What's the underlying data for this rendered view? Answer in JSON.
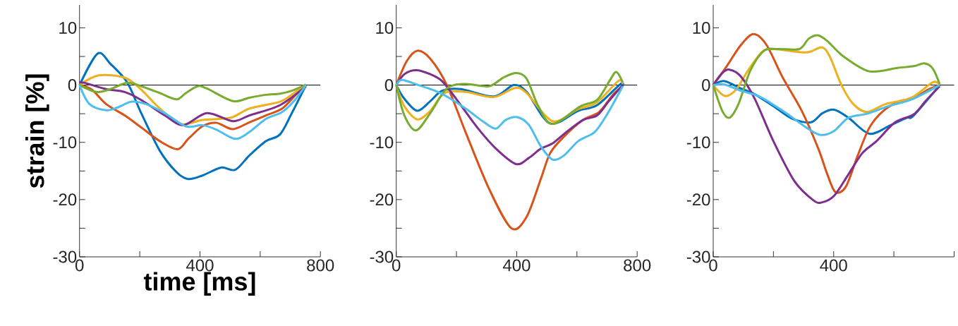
{
  "chart_data": [
    {
      "type": "line",
      "xlabel": "time [ms]",
      "ylabel": "strain [%]",
      "xlim": [
        0,
        800
      ],
      "ylim": [
        -30,
        14
      ],
      "xticks": [
        0,
        {
          "value": 200,
          "label": null
        },
        400,
        {
          "value": 600,
          "label": null
        },
        800
      ],
      "yticks": [
        -30,
        {
          "value": -25,
          "label": null
        },
        -20,
        {
          "value": -15,
          "label": null
        },
        -10,
        {
          "value": -5,
          "label": null
        },
        0,
        {
          "value": 5,
          "label": null
        },
        10
      ],
      "ref_lines": [
        {
          "axis": "y",
          "value": 0,
          "color": "#000000"
        }
      ],
      "series": [
        {
          "color": "#0072bd",
          "x": [
            0,
            60,
            103,
            158,
            205,
            267,
            322,
            361,
            408,
            470,
            517,
            564,
            619,
            666,
            705,
            752
          ],
          "values": [
            0,
            5.5,
            3.7,
            0.5,
            -4.9,
            -11.5,
            -15.2,
            -16.4,
            -15.8,
            -14.4,
            -14.8,
            -12.3,
            -9.8,
            -8.6,
            -4.9,
            0
          ]
        },
        {
          "color": "#d95319",
          "x": [
            0,
            41,
            88,
            150,
            205,
            267,
            326,
            361,
            408,
            455,
            509,
            564,
            619,
            673,
            720,
            752
          ],
          "values": [
            0,
            -0.8,
            -3.3,
            -5.3,
            -7.4,
            -9.8,
            -11.2,
            -9.4,
            -7.2,
            -6.6,
            -7.7,
            -6.5,
            -5.3,
            -4.1,
            -1.6,
            -0.3
          ]
        },
        {
          "color": "#edb120",
          "x": [
            0,
            64,
            150,
            205,
            267,
            337,
            408,
            502,
            564,
            666,
            712,
            752
          ],
          "values": [
            0,
            1.7,
            1.3,
            -0.8,
            -4.1,
            -6.8,
            -6.1,
            -5.7,
            -4.1,
            -2.9,
            -1.4,
            0
          ]
        },
        {
          "color": "#7e2f8e",
          "x": [
            0,
            17,
            88,
            150,
            205,
            283,
            345,
            423,
            509,
            564,
            666,
            752
          ],
          "values": [
            0.4,
            0.4,
            -0.7,
            -1.2,
            -2.6,
            -5.3,
            -7.0,
            -4.9,
            -6.3,
            -5.3,
            -3.5,
            -0.2
          ]
        },
        {
          "color": "#77ac30",
          "x": [
            0,
            56,
            103,
            158,
            205,
            267,
            322,
            353,
            392,
            423,
            509,
            564,
            619,
            666,
            705,
            752
          ],
          "values": [
            0,
            -1.2,
            -0.7,
            0.4,
            -0.2,
            -1.4,
            -2.5,
            -1.4,
            -0.2,
            -0.6,
            -2.8,
            -2.2,
            -1.7,
            -1.5,
            -1.0,
            0.1
          ]
        },
        {
          "color": "#4dbeee",
          "x": [
            0,
            33,
            88,
            127,
            173,
            220,
            283,
            353,
            408,
            455,
            517,
            564,
            619,
            673,
            712,
            752
          ],
          "values": [
            0,
            -3.3,
            -4.4,
            -3.9,
            -2.9,
            -3.3,
            -4.9,
            -7.2,
            -7.0,
            -7.8,
            -9.4,
            -8.2,
            -5.9,
            -4.7,
            -2.8,
            0
          ]
        }
      ]
    },
    {
      "type": "line",
      "xlim": [
        0,
        800
      ],
      "ylim": [
        -30,
        14
      ],
      "xticks": [
        0,
        {
          "value": 200,
          "label": null
        },
        400,
        {
          "value": 600,
          "label": null
        },
        800
      ],
      "yticks": [
        -30,
        {
          "value": -25,
          "label": null
        },
        -20,
        {
          "value": -15,
          "label": null
        },
        -10,
        {
          "value": -5,
          "label": null
        },
        0,
        {
          "value": 5,
          "label": null
        },
        10
      ],
      "ref_lines": [
        {
          "axis": "y",
          "value": 0,
          "color": "#000000"
        }
      ],
      "series": [
        {
          "color": "#0072bd",
          "x": [
            0,
            27,
            70,
            113,
            152,
            214,
            324,
            390,
            433,
            511,
            604,
            667,
            745,
            752
          ],
          "values": [
            0,
            -2.4,
            -4.5,
            -2.8,
            -1.0,
            -0.7,
            -2.0,
            0,
            -1.2,
            -6.7,
            -4.5,
            -3.5,
            0.2,
            -0.2
          ]
        },
        {
          "color": "#d95319",
          "x": [
            0,
            35,
            70,
            113,
            168,
            230,
            308,
            382,
            433,
            480,
            511,
            557,
            620,
            674,
            721,
            752
          ],
          "values": [
            0,
            4.2,
            6.0,
            4.6,
            0,
            -8.2,
            -18.1,
            -25.0,
            -23.0,
            -16.4,
            -11.9,
            -9.0,
            -6.1,
            -4.7,
            -1.6,
            -0.2
          ]
        },
        {
          "color": "#edb120",
          "x": [
            0,
            27,
            70,
            113,
            160,
            230,
            324,
            394,
            433,
            519,
            604,
            667,
            737,
            752
          ],
          "values": [
            0,
            -3.7,
            -6.0,
            -4.5,
            -1.4,
            -1.2,
            -2.1,
            -0.5,
            -1.4,
            -6.3,
            -4.2,
            -3.0,
            0.7,
            0.2
          ]
        },
        {
          "color": "#7e2f8e",
          "x": [
            0,
            27,
            66,
            113,
            152,
            199,
            269,
            331,
            398,
            441,
            480,
            519,
            565,
            620,
            667,
            706,
            752
          ],
          "values": [
            0,
            1.9,
            2.6,
            1.9,
            0.7,
            -2.4,
            -7.4,
            -11.1,
            -13.8,
            -12.7,
            -11.1,
            -10.2,
            -8.2,
            -6.1,
            -5.3,
            -2.8,
            0
          ]
        },
        {
          "color": "#77ac30",
          "x": [
            0,
            27,
            66,
            113,
            168,
            230,
            308,
            355,
            398,
            433,
            472,
            519,
            612,
            667,
            710,
            731,
            752
          ],
          "values": [
            0,
            -5.3,
            -7.9,
            -4.9,
            -0.6,
            0.2,
            -0.2,
            1.3,
            2.1,
            1.1,
            -3.7,
            -6.8,
            -3.7,
            -2.6,
            0.9,
            2.3,
            0.5
          ]
        },
        {
          "color": "#4dbeee",
          "x": [
            0,
            19,
            74,
            129,
            168,
            230,
            292,
            331,
            363,
            402,
            441,
            480,
            519,
            557,
            604,
            659,
            698,
            752
          ],
          "values": [
            0,
            0.9,
            0,
            -1.0,
            -2.0,
            -4.1,
            -6.5,
            -7.6,
            -6.1,
            -5.6,
            -7.0,
            -10.7,
            -13.0,
            -12.3,
            -9.8,
            -8.2,
            -5.3,
            -0.2
          ]
        }
      ]
    },
    {
      "type": "line",
      "xlim": [
        0,
        800
      ],
      "ylim": [
        -30,
        14
      ],
      "xticks": [
        0,
        {
          "value": 200,
          "label": null
        },
        400,
        {
          "value": 600,
          "label": null
        },
        {
          "value": 800,
          "label": null
        }
      ],
      "yticks": [
        -30,
        {
          "value": -25,
          "label": null
        },
        -20,
        {
          "value": -15,
          "label": null
        },
        -10,
        {
          "value": -5,
          "label": null
        },
        0,
        {
          "value": 5,
          "label": null
        },
        10
      ],
      "ref_lines": [
        {
          "axis": "y",
          "value": 0,
          "color": "#000000"
        }
      ],
      "series": [
        {
          "color": "#0072bd",
          "x": [
            0,
            37,
            92,
            138,
            200,
            263,
            325,
            363,
            402,
            449,
            519,
            589,
            643,
            666,
            752
          ],
          "values": [
            0,
            0.7,
            -0.6,
            -1.6,
            -3.7,
            -5.9,
            -6.5,
            -4.9,
            -4.3,
            -5.7,
            -8.5,
            -7.0,
            -5.7,
            -5.3,
            0
          ]
        },
        {
          "color": "#d95319",
          "x": [
            0,
            45,
            92,
            134,
            177,
            231,
            294,
            349,
            379,
            406,
            441,
            480,
            519,
            565,
            620,
            666,
            713,
            752
          ],
          "values": [
            0,
            3.3,
            7.0,
            8.9,
            7.0,
            1.3,
            -4.5,
            -11.1,
            -15.6,
            -18.7,
            -17.7,
            -12.3,
            -7.4,
            -4.5,
            -2.8,
            -2.3,
            -0.8,
            0
          ]
        },
        {
          "color": "#edb120",
          "x": [
            0,
            39,
            76,
            115,
            162,
            200,
            309,
            360,
            387,
            426,
            465,
            511,
            573,
            659,
            729,
            752
          ],
          "values": [
            0,
            -1.9,
            -0.8,
            2.5,
            5.8,
            6.3,
            5.7,
            6.6,
            5.0,
            0,
            -3.3,
            -4.7,
            -3.3,
            -2.2,
            0.5,
            0
          ]
        },
        {
          "color": "#7e2f8e",
          "x": [
            0,
            30,
            54,
            92,
            138,
            200,
            270,
            332,
            360,
            402,
            449,
            495,
            542,
            604,
            666,
            705,
            752
          ],
          "values": [
            0,
            2.1,
            2.7,
            1.5,
            -2.4,
            -9.8,
            -16.8,
            -20.1,
            -20.5,
            -19.3,
            -15.6,
            -11.9,
            -9.8,
            -6.5,
            -5.1,
            -2.8,
            -0.2
          ]
        },
        {
          "color": "#77ac30",
          "x": [
            0,
            30,
            54,
            84,
            123,
            169,
            216,
            286,
            317,
            348,
            379,
            433,
            519,
            612,
            666,
            701,
            729,
            752
          ],
          "values": [
            0,
            -4.5,
            -5.7,
            -3.3,
            2.5,
            6.0,
            6.3,
            6.3,
            8.1,
            8.7,
            7.7,
            5.0,
            2.4,
            3.0,
            3.3,
            3.8,
            2.9,
            0.2
          ]
        },
        {
          "color": "#4dbeee",
          "x": [
            0,
            37,
            92,
            154,
            231,
            309,
            356,
            402,
            449,
            511,
            581,
            659,
            752
          ],
          "values": [
            0,
            0.1,
            -1.0,
            -2.0,
            -4.5,
            -7.4,
            -8.7,
            -8.0,
            -5.7,
            -5.0,
            -3.7,
            -2.5,
            0
          ]
        }
      ]
    }
  ]
}
